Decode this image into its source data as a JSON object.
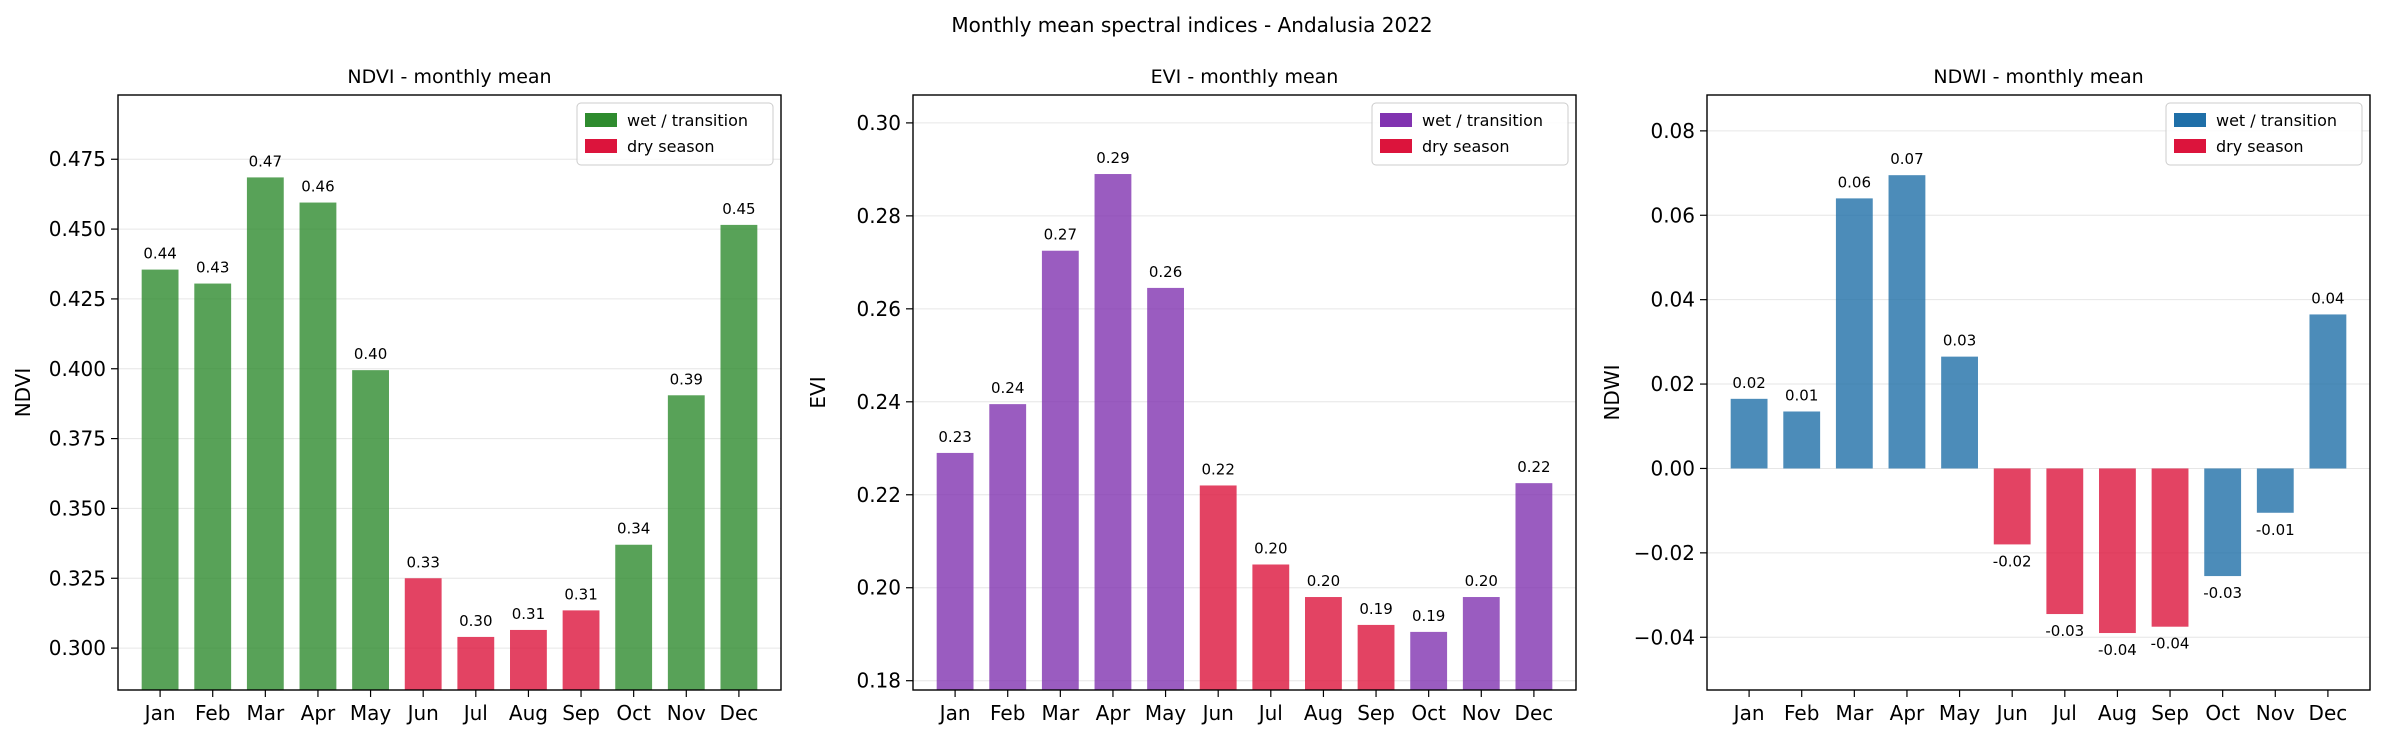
{
  "suptitle": "Monthly mean spectral indices - Andalusia 2022",
  "colors": {
    "dry": "#DC143C",
    "grid": "#e6e6e6",
    "axis": "#000000"
  },
  "chart_data": [
    {
      "type": "bar",
      "title": "NDVI - monthly mean",
      "ylabel": "NDVI",
      "categories": [
        "Jan",
        "Feb",
        "Mar",
        "Apr",
        "May",
        "Jun",
        "Jul",
        "Aug",
        "Sep",
        "Oct",
        "Nov",
        "Dec"
      ],
      "values": [
        0.4355,
        0.4305,
        0.4685,
        0.4595,
        0.3995,
        0.325,
        0.304,
        0.3065,
        0.3135,
        0.337,
        0.3905,
        0.4515
      ],
      "value_labels": [
        "0.44",
        "0.43",
        "0.47",
        "0.46",
        "0.40",
        "0.33",
        "0.30",
        "0.31",
        "0.31",
        "0.34",
        "0.39",
        "0.45"
      ],
      "season": [
        "wet",
        "wet",
        "wet",
        "wet",
        "wet",
        "dry",
        "dry",
        "dry",
        "dry",
        "wet",
        "wet",
        "wet"
      ],
      "ylim": [
        0.285,
        0.498
      ],
      "yticks": [
        0.3,
        0.325,
        0.35,
        0.375,
        0.4,
        0.425,
        0.45,
        0.475
      ],
      "ytick_labels": [
        "0.300",
        "0.325",
        "0.350",
        "0.375",
        "0.400",
        "0.425",
        "0.450",
        "0.475"
      ],
      "wet_color": "#2e8b2e",
      "legend": [
        "wet / transition",
        "dry season"
      ],
      "legend_position": "top-right",
      "grid": "horizontal"
    },
    {
      "type": "bar",
      "title": "EVI - monthly mean",
      "ylabel": "EVI",
      "categories": [
        "Jan",
        "Feb",
        "Mar",
        "Apr",
        "May",
        "Jun",
        "Jul",
        "Aug",
        "Sep",
        "Oct",
        "Nov",
        "Dec"
      ],
      "values": [
        0.229,
        0.2395,
        0.2725,
        0.289,
        0.2645,
        0.222,
        0.205,
        0.198,
        0.192,
        0.1905,
        0.198,
        0.2225
      ],
      "value_labels": [
        "0.23",
        "0.24",
        "0.27",
        "0.29",
        "0.26",
        "0.22",
        "0.20",
        "0.20",
        "0.19",
        "0.19",
        "0.20",
        "0.22"
      ],
      "season": [
        "wet",
        "wet",
        "wet",
        "wet",
        "wet",
        "dry",
        "dry",
        "dry",
        "dry",
        "wet",
        "wet",
        "wet"
      ],
      "ylim": [
        0.178,
        0.306
      ],
      "yticks": [
        0.18,
        0.2,
        0.22,
        0.24,
        0.26,
        0.28,
        0.3
      ],
      "ytick_labels": [
        "0.18",
        "0.20",
        "0.22",
        "0.24",
        "0.26",
        "0.28",
        "0.30"
      ],
      "wet_color": "#8133b0",
      "legend": [
        "wet / transition",
        "dry season"
      ],
      "legend_position": "top-right",
      "grid": "horizontal"
    },
    {
      "type": "bar",
      "title": "NDWI - monthly mean",
      "ylabel": "NDWI",
      "categories": [
        "Jan",
        "Feb",
        "Mar",
        "Apr",
        "May",
        "Jun",
        "Jul",
        "Aug",
        "Sep",
        "Oct",
        "Nov",
        "Dec"
      ],
      "values": [
        0.0165,
        0.0135,
        0.064,
        0.0695,
        0.0265,
        -0.018,
        -0.0345,
        -0.039,
        -0.0375,
        -0.0255,
        -0.0105,
        0.0365
      ],
      "value_labels": [
        "0.02",
        "0.01",
        "0.06",
        "0.07",
        "0.03",
        "-0.02",
        "-0.03",
        "-0.04",
        "-0.04",
        "-0.03",
        "-0.01",
        "0.04"
      ],
      "season": [
        "wet",
        "wet",
        "wet",
        "wet",
        "wet",
        "dry",
        "dry",
        "dry",
        "dry",
        "wet",
        "wet",
        "wet"
      ],
      "ylim": [
        -0.0525,
        0.0885
      ],
      "yticks": [
        -0.04,
        -0.02,
        0.0,
        0.02,
        0.04,
        0.06,
        0.08
      ],
      "ytick_labels": [
        "−0.04",
        "−0.02",
        "0.00",
        "0.02",
        "0.04",
        "0.06",
        "0.08"
      ],
      "wet_color": "#1f6fa8",
      "legend": [
        "wet / transition",
        "dry season"
      ],
      "legend_position": "top-right",
      "grid": "horizontal"
    }
  ]
}
